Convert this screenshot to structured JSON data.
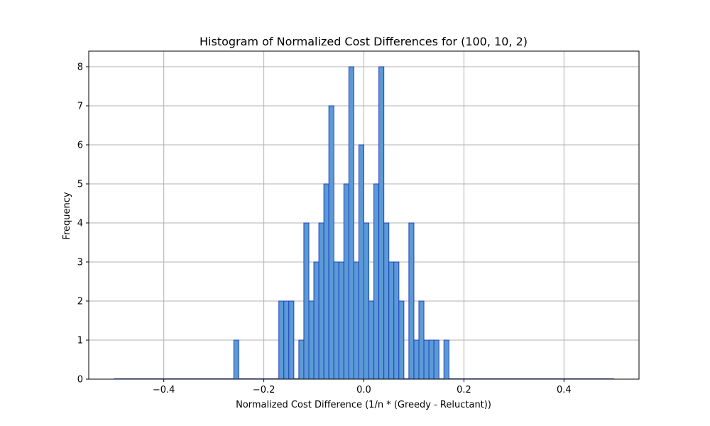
{
  "chart_data": {
    "type": "bar",
    "title": "Histogram of Normalized Cost Differences for (100, 10, 2)",
    "xlabel": "Normalized Cost Difference (1/n * (Greedy - Reluctant))",
    "ylabel": "Frequency",
    "xlim": [
      -0.55,
      0.55
    ],
    "ylim": [
      0,
      8.4
    ],
    "xticks": [
      -0.4,
      -0.2,
      0.0,
      0.2,
      0.4
    ],
    "xtick_labels": [
      "−0.4",
      "−0.2",
      "0.0",
      "0.2",
      "0.4"
    ],
    "yticks": [
      0,
      1,
      2,
      3,
      4,
      5,
      6,
      7,
      8
    ],
    "ytick_labels": [
      "0",
      "1",
      "2",
      "3",
      "4",
      "5",
      "6",
      "7",
      "8"
    ],
    "grid": true,
    "bar_color": "#5b9bd5",
    "edge_color": "#1f3fbf",
    "bin_range": [
      -0.5,
      0.5
    ],
    "bin_width": 0.01,
    "bins": [
      {
        "x": -0.255,
        "count": 1
      },
      {
        "x": -0.165,
        "count": 2
      },
      {
        "x": -0.155,
        "count": 2
      },
      {
        "x": -0.145,
        "count": 2
      },
      {
        "x": -0.125,
        "count": 1
      },
      {
        "x": -0.115,
        "count": 4
      },
      {
        "x": -0.105,
        "count": 2
      },
      {
        "x": -0.095,
        "count": 3
      },
      {
        "x": -0.085,
        "count": 4
      },
      {
        "x": -0.075,
        "count": 5
      },
      {
        "x": -0.065,
        "count": 7
      },
      {
        "x": -0.055,
        "count": 3
      },
      {
        "x": -0.045,
        "count": 3
      },
      {
        "x": -0.035,
        "count": 5
      },
      {
        "x": -0.025,
        "count": 8
      },
      {
        "x": -0.015,
        "count": 3
      },
      {
        "x": -0.005,
        "count": 6
      },
      {
        "x": 0.005,
        "count": 4
      },
      {
        "x": 0.015,
        "count": 2
      },
      {
        "x": 0.025,
        "count": 5
      },
      {
        "x": 0.035,
        "count": 8
      },
      {
        "x": 0.045,
        "count": 4
      },
      {
        "x": 0.055,
        "count": 3
      },
      {
        "x": 0.065,
        "count": 3
      },
      {
        "x": 0.075,
        "count": 2
      },
      {
        "x": 0.085,
        "count": 0
      },
      {
        "x": 0.095,
        "count": 4
      },
      {
        "x": 0.105,
        "count": 1
      },
      {
        "x": 0.115,
        "count": 2
      },
      {
        "x": 0.125,
        "count": 1
      },
      {
        "x": 0.135,
        "count": 1
      },
      {
        "x": 0.145,
        "count": 1
      },
      {
        "x": 0.165,
        "count": 1
      }
    ]
  }
}
